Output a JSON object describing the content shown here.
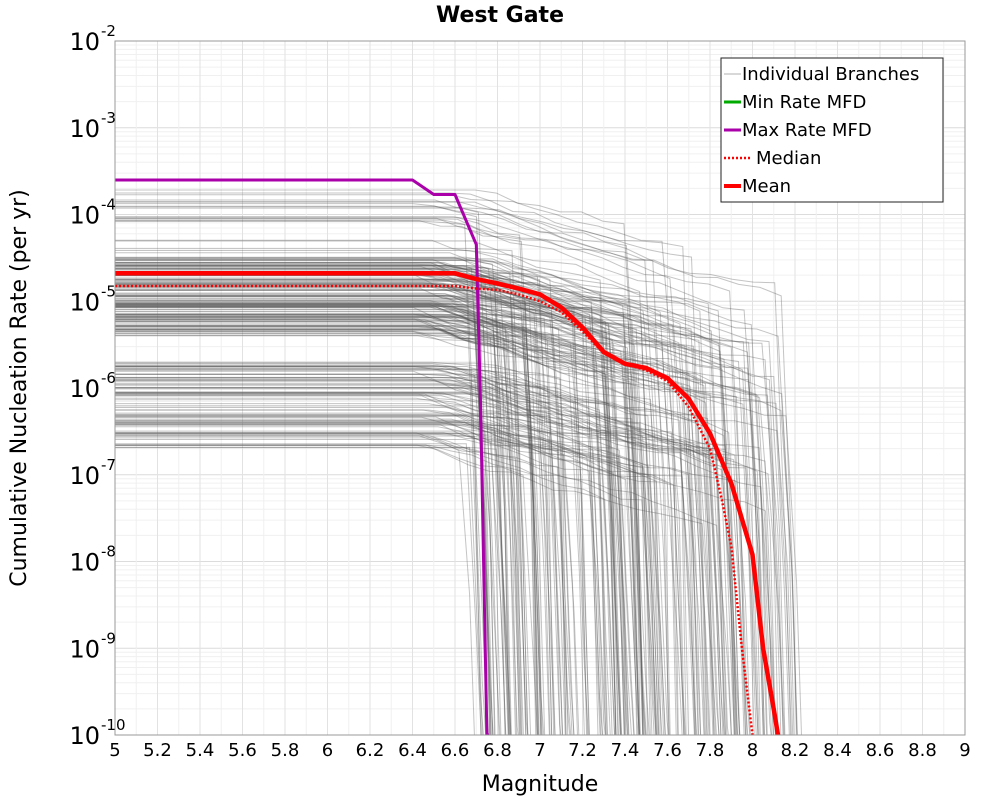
{
  "chart_data": {
    "type": "line",
    "title": "West Gate",
    "xlabel": "Magnitude",
    "ylabel": "Cumulative Nucleation Rate (per yr)",
    "xlim": [
      5,
      9
    ],
    "ylim": [
      1e-10,
      0.01
    ],
    "yscale": "log",
    "grid": true,
    "legend_position": "top-right",
    "x_ticks": [
      "5",
      "5.2",
      "5.4",
      "5.6",
      "5.8",
      "6",
      "6.2",
      "6.4",
      "6.6",
      "6.8",
      "7",
      "7.2",
      "7.4",
      "7.6",
      "7.8",
      "8",
      "8.2",
      "8.4",
      "8.6",
      "8.8",
      "9"
    ],
    "y_ticks": [
      {
        "base": "10",
        "exp": "-2",
        "value": 0.01
      },
      {
        "base": "10",
        "exp": "-3",
        "value": 0.001
      },
      {
        "base": "10",
        "exp": "-4",
        "value": 0.0001
      },
      {
        "base": "10",
        "exp": "-5",
        "value": 1e-05
      },
      {
        "base": "10",
        "exp": "-6",
        "value": 1e-06
      },
      {
        "base": "10",
        "exp": "-7",
        "value": 1e-07
      },
      {
        "base": "10",
        "exp": "-8",
        "value": 1e-08
      },
      {
        "base": "10",
        "exp": "-9",
        "value": 1e-09
      },
      {
        "base": "10",
        "exp": "-10",
        "value": 1e-10
      }
    ],
    "legend": [
      {
        "label": "Individual Branches",
        "color": "#b0b0b0",
        "style": "thin"
      },
      {
        "label": "Min Rate MFD",
        "color": "#00aa00",
        "style": "solid"
      },
      {
        "label": "Max Rate MFD",
        "color": "#aa00aa",
        "style": "solid"
      },
      {
        "label": "Median",
        "color": "#ff0000",
        "style": "dotted"
      },
      {
        "label": "Mean",
        "color": "#ff0000",
        "style": "thick"
      }
    ],
    "series": [
      {
        "name": "Max Rate MFD",
        "color": "#aa00aa",
        "x": [
          5.0,
          6.4,
          6.5,
          6.6,
          6.7,
          6.72,
          6.75,
          6.76
        ],
        "y": [
          0.00025,
          0.00025,
          0.00017,
          0.00017,
          4.5e-05,
          7e-07,
          1e-10,
          1e-10
        ]
      },
      {
        "name": "Median",
        "color": "#ff0000",
        "x": [
          5.0,
          6.6,
          6.7,
          6.8,
          6.9,
          7.0,
          7.1,
          7.2,
          7.3,
          7.4,
          7.5,
          7.6,
          7.7,
          7.8,
          7.85,
          7.9,
          7.95,
          8.0
        ],
        "y": [
          1.5e-05,
          1.5e-05,
          1.4e-05,
          1.35e-05,
          1.2e-05,
          1e-05,
          7.5e-06,
          4.5e-06,
          2.5e-06,
          1.9e-06,
          1.6e-06,
          1.2e-06,
          6e-07,
          2e-07,
          6e-08,
          1.5e-08,
          1e-09,
          1e-10
        ]
      },
      {
        "name": "Mean",
        "color": "#ff0000",
        "x": [
          5.0,
          6.6,
          6.7,
          6.8,
          6.9,
          7.0,
          7.1,
          7.2,
          7.3,
          7.4,
          7.5,
          7.6,
          7.7,
          7.8,
          7.9,
          8.0,
          8.05,
          8.1,
          8.12
        ],
        "y": [
          2.1e-05,
          2.1e-05,
          1.8e-05,
          1.6e-05,
          1.4e-05,
          1.2e-05,
          8.5e-06,
          5e-06,
          2.6e-06,
          1.9e-06,
          1.7e-06,
          1.3e-06,
          7.5e-07,
          3e-07,
          8e-08,
          1.2e-08,
          1e-09,
          2e-10,
          1e-10
        ]
      }
    ]
  }
}
